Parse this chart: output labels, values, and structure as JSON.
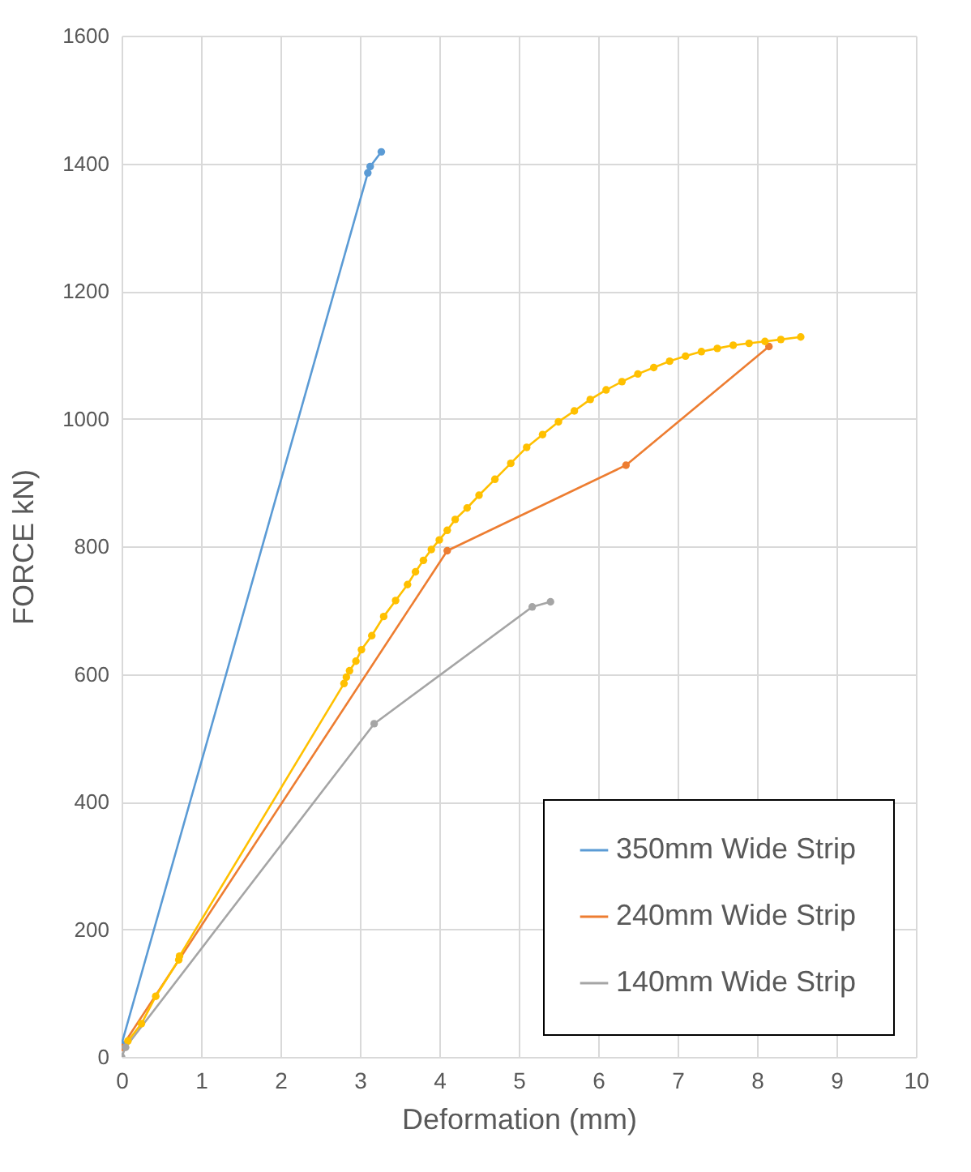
{
  "chart_data": {
    "type": "line",
    "xlabel": "Deformation (mm)",
    "ylabel": "FORCE kN)",
    "xlim": [
      0,
      10
    ],
    "xticks": [
      0,
      1,
      2,
      3,
      4,
      5,
      6,
      7,
      8,
      9,
      10
    ],
    "ylim": [
      0,
      1600
    ],
    "yticks": [
      0,
      200,
      400,
      600,
      800,
      1000,
      1200,
      1400,
      1600
    ],
    "grid": true,
    "legend": "bottom right",
    "marker": "circle",
    "line_style": "solid",
    "series": [
      {
        "name": "350mm Wide Strip",
        "color": "#5b9bd5",
        "x": [
          0,
          3.1,
          3.13,
          3.27
        ],
        "values": [
          20,
          1385,
          1395,
          1418
        ]
      },
      {
        "name": "240mm Wide Strip",
        "color": "#ed7d31",
        "x": [
          0,
          4.1,
          6.35,
          8.15
        ],
        "values": [
          15,
          793,
          927,
          1113
        ]
      },
      {
        "name": "140mm Wide Strip",
        "color": "#a5a5a5",
        "x": [
          0,
          0.05,
          3.18,
          5.17,
          5.4
        ],
        "values": [
          0,
          15,
          522,
          705,
          713
        ]
      },
      {
        "color": "#ffc000",
        "x": [
          0.08,
          0.25,
          0.43,
          0.72,
          0.73,
          2.8,
          2.83,
          2.87,
          2.95,
          3.02,
          3.15,
          3.3,
          3.45,
          3.6,
          3.7,
          3.8,
          3.9,
          4.0,
          4.1,
          4.2,
          4.35,
          4.5,
          4.7,
          4.9,
          5.1,
          5.3,
          5.5,
          5.7,
          5.9,
          6.1,
          6.3,
          6.5,
          6.7,
          6.9,
          7.1,
          7.3,
          7.5,
          7.7,
          7.9,
          8.1,
          8.3,
          8.55
        ],
        "values": [
          25,
          52,
          95,
          152,
          158,
          585,
          595,
          605,
          620,
          638,
          660,
          690,
          715,
          740,
          760,
          778,
          795,
          810,
          825,
          842,
          860,
          880,
          905,
          930,
          955,
          975,
          995,
          1012,
          1030,
          1045,
          1058,
          1070,
          1080,
          1090,
          1098,
          1105,
          1110,
          1115,
          1118,
          1121,
          1124,
          1128
        ]
      }
    ]
  }
}
